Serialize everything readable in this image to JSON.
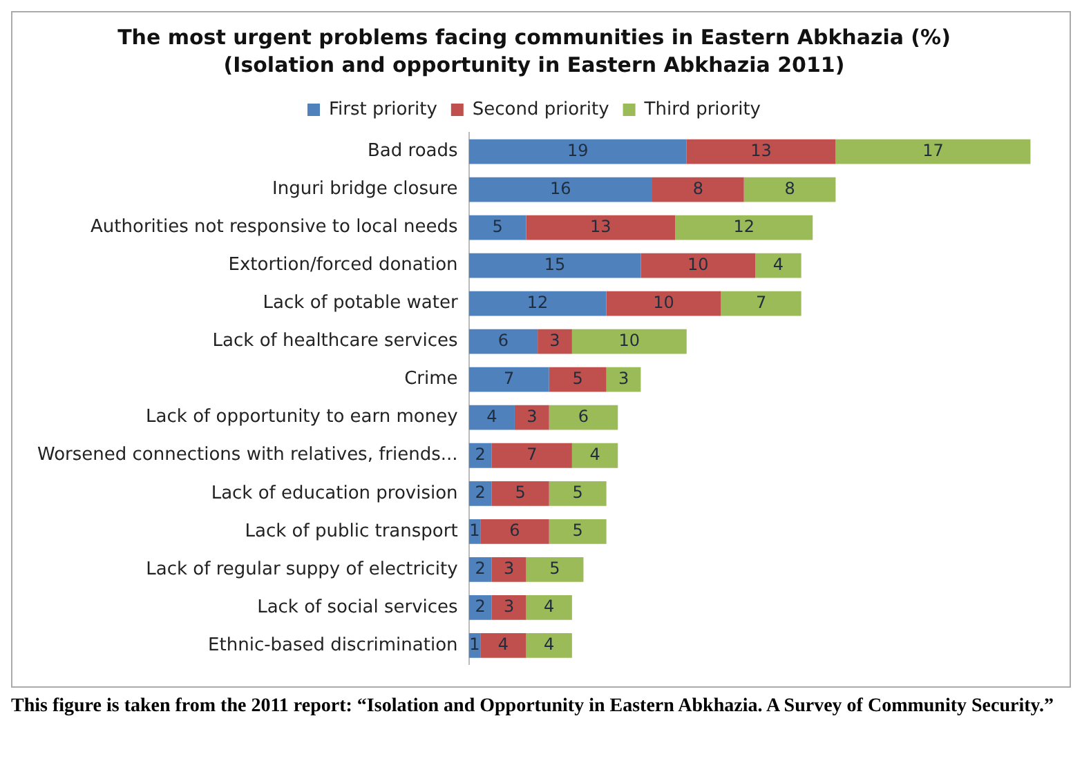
{
  "chart_data": {
    "type": "bar",
    "orientation": "horizontal",
    "stacked": true,
    "title": "The most urgent problems facing communities in Eastern Abkhazia (%)",
    "subtitle": "(Isolation and opportunity in Eastern Abkhazia 2011)",
    "categories": [
      "Bad roads",
      "Inguri bridge closure",
      "Authorities not responsive to local needs",
      "Extortion/forced donation",
      "Lack of potable water",
      "Lack of healthcare services",
      "Crime",
      "Lack of opportunity to earn money",
      "Worsened connections with relatives, friends...",
      "Lack of education provision",
      "Lack of public transport",
      "Lack of regular suppy of electricity",
      "Lack of social services",
      "Ethnic-based discrimination"
    ],
    "series": [
      {
        "name": "First priority",
        "color": "#4f81bd",
        "values": [
          19,
          16,
          5,
          15,
          12,
          6,
          7,
          4,
          2,
          2,
          1,
          2,
          2,
          1
        ]
      },
      {
        "name": "Second priority",
        "color": "#c0504d",
        "values": [
          13,
          8,
          13,
          10,
          10,
          3,
          5,
          3,
          7,
          5,
          6,
          3,
          3,
          4
        ]
      },
      {
        "name": "Third priority",
        "color": "#9bbb59",
        "values": [
          17,
          8,
          12,
          4,
          7,
          10,
          3,
          6,
          4,
          5,
          5,
          5,
          4,
          4
        ]
      }
    ],
    "data_labels": true,
    "legend": "top",
    "grid": false,
    "annotations": [
      "This figure is taken from the 2011 report: “Isolation and Opportunity in Eastern Abkhazia. A Survey of Community Security.”"
    ]
  }
}
